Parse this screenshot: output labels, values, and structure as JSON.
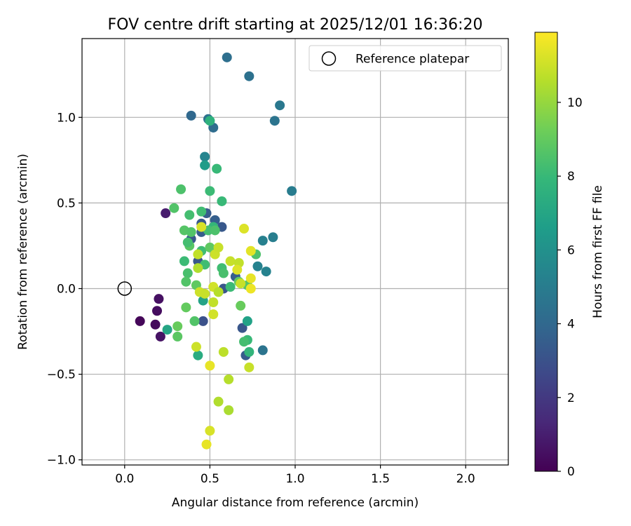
{
  "chart_data": {
    "type": "scatter",
    "title": "FOV centre drift starting at 2025/12/01 16:36:20",
    "xlabel": "Angular distance from reference (arcmin)",
    "ylabel": "Rotation from reference (arcmin)",
    "xlim": [
      -0.25,
      2.25
    ],
    "ylim": [
      -1.03,
      1.46
    ],
    "xticks": [
      0.0,
      0.5,
      1.0,
      1.5,
      2.0
    ],
    "xtick_labels": [
      "0.0",
      "0.5",
      "1.0",
      "1.5",
      "2.0"
    ],
    "yticks": [
      -1.0,
      -0.5,
      0.0,
      0.5,
      1.0
    ],
    "ytick_labels": [
      "−1.0",
      "−0.5",
      "0.0",
      "0.5",
      "1.0"
    ],
    "grid": true,
    "legend": {
      "placement": "top-right",
      "label": "Reference platepar"
    },
    "reference_point": {
      "x": 0.0,
      "y": 0.0
    },
    "colorbar": {
      "label": "Hours from first FF file",
      "range": [
        0,
        11.9
      ],
      "ticks": [
        0,
        2,
        4,
        6,
        8,
        10
      ],
      "tick_labels": [
        "0",
        "2",
        "4",
        "6",
        "8",
        "10"
      ],
      "colormap": "viridis",
      "stops": [
        "#440154",
        "#482878",
        "#3e4989",
        "#31688e",
        "#26828e",
        "#1f9e89",
        "#35b779",
        "#6ece58",
        "#b5de2b",
        "#fde725"
      ]
    },
    "points": [
      {
        "x": 0.09,
        "y": -0.19,
        "t": 0.2
      },
      {
        "x": 0.18,
        "y": -0.21,
        "t": 0.3
      },
      {
        "x": 0.19,
        "y": -0.13,
        "t": 0.4
      },
      {
        "x": 0.2,
        "y": -0.06,
        "t": 0.5
      },
      {
        "x": 0.21,
        "y": -0.28,
        "t": 0.6
      },
      {
        "x": 0.24,
        "y": 0.44,
        "t": 0.9
      },
      {
        "x": 0.46,
        "y": -0.19,
        "t": 3.0
      },
      {
        "x": 0.43,
        "y": 0.16,
        "t": 3.2
      },
      {
        "x": 0.45,
        "y": 0.38,
        "t": 3.3
      },
      {
        "x": 0.48,
        "y": 0.44,
        "t": 3.4
      },
      {
        "x": 0.39,
        "y": 0.29,
        "t": 3.3
      },
      {
        "x": 0.57,
        "y": 0.36,
        "t": 3.3
      },
      {
        "x": 0.53,
        "y": 0.4,
        "t": 3.6
      },
      {
        "x": 0.45,
        "y": 0.33,
        "t": 3.5
      },
      {
        "x": 0.58,
        "y": 0.0,
        "t": 3.2
      },
      {
        "x": 0.69,
        "y": -0.23,
        "t": 3.2
      },
      {
        "x": 0.71,
        "y": -0.39,
        "t": 3.4
      },
      {
        "x": 0.65,
        "y": 0.07,
        "t": 3.6
      },
      {
        "x": 0.39,
        "y": 1.01,
        "t": 4.0
      },
      {
        "x": 0.52,
        "y": 0.94,
        "t": 4.2
      },
      {
        "x": 0.49,
        "y": 0.99,
        "t": 4.5
      },
      {
        "x": 0.6,
        "y": 1.35,
        "t": 4.3
      },
      {
        "x": 0.73,
        "y": 1.24,
        "t": 4.4
      },
      {
        "x": 0.88,
        "y": 0.98,
        "t": 4.6
      },
      {
        "x": 0.91,
        "y": 1.07,
        "t": 4.8
      },
      {
        "x": 0.81,
        "y": -0.36,
        "t": 4.6
      },
      {
        "x": 0.98,
        "y": 0.57,
        "t": 5.0
      },
      {
        "x": 0.87,
        "y": 0.3,
        "t": 5.1
      },
      {
        "x": 0.81,
        "y": 0.28,
        "t": 5.2
      },
      {
        "x": 0.78,
        "y": 0.13,
        "t": 5.3
      },
      {
        "x": 0.83,
        "y": 0.1,
        "t": 5.3
      },
      {
        "x": 0.47,
        "y": 0.77,
        "t": 5.4
      },
      {
        "x": 0.47,
        "y": 0.72,
        "t": 6.5
      },
      {
        "x": 0.72,
        "y": -0.19,
        "t": 6.8
      },
      {
        "x": 0.46,
        "y": -0.07,
        "t": 6.9
      },
      {
        "x": 0.25,
        "y": -0.24,
        "t": 7.0
      },
      {
        "x": 0.43,
        "y": -0.39,
        "t": 7.3
      },
      {
        "x": 0.54,
        "y": 0.7,
        "t": 8.0
      },
      {
        "x": 0.5,
        "y": 0.98,
        "t": 7.6
      },
      {
        "x": 0.73,
        "y": -0.37,
        "t": 7.8
      },
      {
        "x": 0.72,
        "y": -0.3,
        "t": 8.0
      },
      {
        "x": 0.7,
        "y": -0.31,
        "t": 8.3
      },
      {
        "x": 0.57,
        "y": 0.51,
        "t": 8.0
      },
      {
        "x": 0.5,
        "y": 0.57,
        "t": 8.1
      },
      {
        "x": 0.33,
        "y": 0.58,
        "t": 8.5
      },
      {
        "x": 0.29,
        "y": 0.47,
        "t": 8.6
      },
      {
        "x": 0.38,
        "y": 0.43,
        "t": 8.3
      },
      {
        "x": 0.45,
        "y": 0.45,
        "t": 8.2
      },
      {
        "x": 0.52,
        "y": 0.36,
        "t": 7.9
      },
      {
        "x": 0.49,
        "y": 0.34,
        "t": 8.3
      },
      {
        "x": 0.53,
        "y": 0.34,
        "t": 8.5
      },
      {
        "x": 0.35,
        "y": 0.34,
        "t": 8.7
      },
      {
        "x": 0.39,
        "y": 0.33,
        "t": 8.6
      },
      {
        "x": 0.38,
        "y": 0.25,
        "t": 8.8
      },
      {
        "x": 0.37,
        "y": 0.27,
        "t": 8.3
      },
      {
        "x": 0.45,
        "y": 0.22,
        "t": 8.2
      },
      {
        "x": 0.5,
        "y": 0.24,
        "t": 8.9
      },
      {
        "x": 0.35,
        "y": 0.16,
        "t": 8.1
      },
      {
        "x": 0.47,
        "y": 0.14,
        "t": 8.2
      },
      {
        "x": 0.37,
        "y": 0.09,
        "t": 8.4
      },
      {
        "x": 0.36,
        "y": 0.04,
        "t": 8.6
      },
      {
        "x": 0.42,
        "y": 0.02,
        "t": 8.9
      },
      {
        "x": 0.41,
        "y": -0.19,
        "t": 8.6
      },
      {
        "x": 0.36,
        "y": -0.11,
        "t": 9.0
      },
      {
        "x": 0.31,
        "y": -0.22,
        "t": 9.1
      },
      {
        "x": 0.31,
        "y": -0.28,
        "t": 8.8
      },
      {
        "x": 0.57,
        "y": 0.12,
        "t": 8.2
      },
      {
        "x": 0.58,
        "y": 0.09,
        "t": 8.4
      },
      {
        "x": 0.62,
        "y": 0.01,
        "t": 8.1
      },
      {
        "x": 0.67,
        "y": 0.04,
        "t": 8.9
      },
      {
        "x": 0.72,
        "y": 0.02,
        "t": 8.7
      },
      {
        "x": 0.77,
        "y": 0.2,
        "t": 8.5
      },
      {
        "x": 0.68,
        "y": -0.1,
        "t": 9.1
      },
      {
        "x": 0.43,
        "y": 0.12,
        "t": 10.5
      },
      {
        "x": 0.43,
        "y": 0.2,
        "t": 10.8
      },
      {
        "x": 0.45,
        "y": 0.36,
        "t": 11.2
      },
      {
        "x": 0.44,
        "y": -0.02,
        "t": 11.0
      },
      {
        "x": 0.47,
        "y": -0.03,
        "t": 10.9
      },
      {
        "x": 0.52,
        "y": 0.01,
        "t": 11.1
      },
      {
        "x": 0.53,
        "y": 0.2,
        "t": 11.0
      },
      {
        "x": 0.55,
        "y": 0.24,
        "t": 10.9
      },
      {
        "x": 0.52,
        "y": -0.08,
        "t": 10.8
      },
      {
        "x": 0.55,
        "y": -0.02,
        "t": 10.6
      },
      {
        "x": 0.52,
        "y": -0.15,
        "t": 11.1
      },
      {
        "x": 0.62,
        "y": 0.16,
        "t": 10.9
      },
      {
        "x": 0.67,
        "y": 0.15,
        "t": 10.8
      },
      {
        "x": 0.66,
        "y": 0.11,
        "t": 11.3
      },
      {
        "x": 0.68,
        "y": 0.03,
        "t": 10.9
      },
      {
        "x": 0.7,
        "y": 0.35,
        "t": 11.3
      },
      {
        "x": 0.74,
        "y": 0.22,
        "t": 11.4
      },
      {
        "x": 0.74,
        "y": 0.06,
        "t": 11.5
      },
      {
        "x": 0.74,
        "y": 0.0,
        "t": 11.6
      },
      {
        "x": 0.42,
        "y": -0.34,
        "t": 11.0
      },
      {
        "x": 0.58,
        "y": -0.37,
        "t": 10.7
      },
      {
        "x": 0.73,
        "y": -0.46,
        "t": 10.9
      },
      {
        "x": 0.5,
        "y": -0.45,
        "t": 11.5
      },
      {
        "x": 0.61,
        "y": -0.53,
        "t": 10.6
      },
      {
        "x": 0.55,
        "y": -0.66,
        "t": 10.5
      },
      {
        "x": 0.61,
        "y": -0.71,
        "t": 10.4
      },
      {
        "x": 0.5,
        "y": -0.83,
        "t": 11.2
      },
      {
        "x": 0.48,
        "y": -0.91,
        "t": 11.5
      }
    ]
  }
}
